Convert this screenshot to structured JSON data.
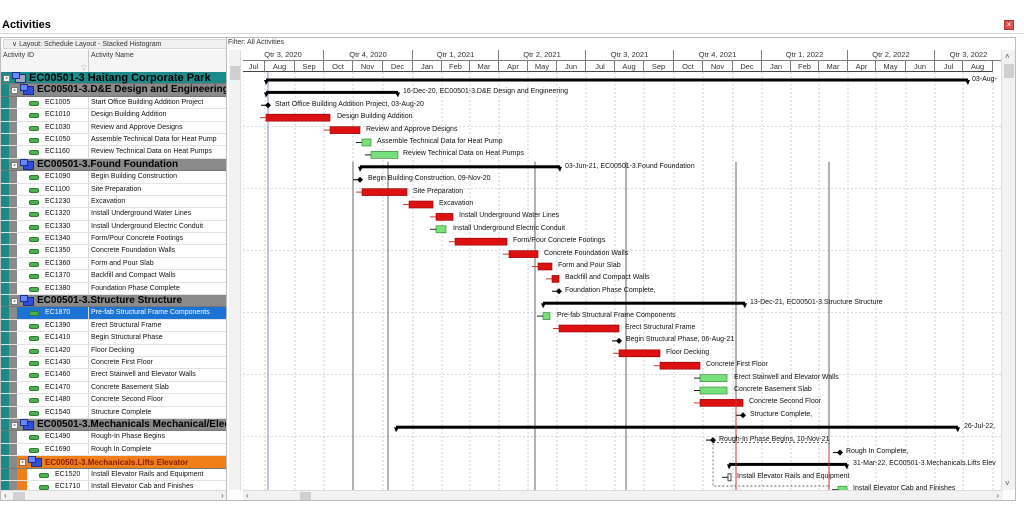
{
  "window": {
    "title": "Activities",
    "close_icon": "close-icon"
  },
  "left_pane": {
    "layout_label": "∨ Layout: Schedule Layout - Stacked Histogram",
    "columns": {
      "activity_id": "Activity ID",
      "activity_name": "Activity Name"
    }
  },
  "right_pane": {
    "filter_label": "Filter: All Activities",
    "quarters": [
      "Qtr 3, 2020",
      "Qtr 4, 2020",
      "Qtr 1, 2021",
      "Qtr 2, 2021",
      "Qtr 3, 2021",
      "Qtr 4, 2021",
      "Qtr 1, 2022",
      "Qtr 2, 2022",
      "Qtr 3, 2022"
    ],
    "months": [
      "Jul",
      "Aug",
      "Sep",
      "Oct",
      "Nov",
      "Dec",
      "Jan",
      "Feb",
      "Mar",
      "Apr",
      "May",
      "Jun",
      "Jul",
      "Aug",
      "Sep",
      "Oct",
      "Nov",
      "Dec",
      "Jan",
      "Feb",
      "Mar",
      "Apr",
      "May",
      "Jun",
      "Jul",
      "Aug"
    ]
  },
  "rows": [
    {
      "type": "wbs",
      "level": 0,
      "title": "EC00501-3  Haitang Corporate Park",
      "color": "#1a8a8a"
    },
    {
      "type": "wbs",
      "level": 1,
      "title": "EC00501-3.D&E  Design and Engineering",
      "color": "#8a8a8a"
    },
    {
      "type": "act",
      "id": "EC1005",
      "name": "Start Office Building Addition Project"
    },
    {
      "type": "act",
      "id": "EC1010",
      "name": "Design Building Addition"
    },
    {
      "type": "act",
      "id": "EC1030",
      "name": "Review and Approve Designs"
    },
    {
      "type": "act",
      "id": "EC1050",
      "name": "Assemble Technical Data for Heat Pump"
    },
    {
      "type": "act",
      "id": "EC1160",
      "name": "Review Technical Data on Heat Pumps"
    },
    {
      "type": "wbs",
      "level": 1,
      "title": "EC00501-3.Found  Foundation",
      "color": "#8a8a8a"
    },
    {
      "type": "act",
      "id": "EC1090",
      "name": "Begin Building Construction"
    },
    {
      "type": "act",
      "id": "EC1100",
      "name": "Site Preparation"
    },
    {
      "type": "act",
      "id": "EC1230",
      "name": "Excavation"
    },
    {
      "type": "act",
      "id": "EC1320",
      "name": "Install Underground Water Lines"
    },
    {
      "type": "act",
      "id": "EC1330",
      "name": "Install Underground Electric Conduit"
    },
    {
      "type": "act",
      "id": "EC1340",
      "name": "Form/Pour Concrete Footings"
    },
    {
      "type": "act",
      "id": "EC1350",
      "name": "Concrete Foundation Walls"
    },
    {
      "type": "act",
      "id": "EC1360",
      "name": "Form and Pour Slab"
    },
    {
      "type": "act",
      "id": "EC1370",
      "name": "Backfill and Compact Walls"
    },
    {
      "type": "act",
      "id": "EC1380",
      "name": "Foundation Phase Complete"
    },
    {
      "type": "wbs",
      "level": 1,
      "title": "EC00501-3.Structure  Structure",
      "color": "#8a8a8a"
    },
    {
      "type": "act",
      "id": "EC1870",
      "name": "Pre-fab Structural Frame Components",
      "selected": true
    },
    {
      "type": "act",
      "id": "EC1390",
      "name": "Erect Structural Frame"
    },
    {
      "type": "act",
      "id": "EC1410",
      "name": "Begin Structural Phase"
    },
    {
      "type": "act",
      "id": "EC1420",
      "name": "Floor Decking"
    },
    {
      "type": "act",
      "id": "EC1430",
      "name": "Concrete First Floor"
    },
    {
      "type": "act",
      "id": "EC1460",
      "name": "Erect Stairwell and Elevator Walls"
    },
    {
      "type": "act",
      "id": "EC1470",
      "name": "Concrete Basement Slab"
    },
    {
      "type": "act",
      "id": "EC1480",
      "name": "Concrete Second Floor"
    },
    {
      "type": "act",
      "id": "EC1540",
      "name": "Structure Complete"
    },
    {
      "type": "wbs",
      "level": 1,
      "title": "EC00501-3.Mechanicals  Mechanical/Elec",
      "color": "#8a8a8a"
    },
    {
      "type": "act",
      "id": "EC1490",
      "name": "Rough-In Phase Begins"
    },
    {
      "type": "act",
      "id": "EC1690",
      "name": "Rough In Complete"
    },
    {
      "type": "wbs",
      "level": 2,
      "title": "EC00501-3.Mechanicals.Lifts  Elevator",
      "color": "#f07f1a"
    },
    {
      "type": "act",
      "id": "EC1520",
      "name": "Install Elevator Rails and Equipment",
      "indent": 1
    },
    {
      "type": "act",
      "id": "EC1710",
      "name": "Install Elevator Cab and Finishes",
      "indent": 1
    }
  ],
  "gantt": {
    "colors": {
      "critical": "#dd1111",
      "noncritical": "#77e07a",
      "summary": "#000000",
      "link": "#cc3333"
    },
    "labels": {
      "r0": "03-Aug-",
      "r1": "16-Dec-20, EC00501-3.D&E  Design and Engineering",
      "r2": "Start Office Building Addition Project, 03-Aug-20",
      "r3": "Design Building Addition",
      "r4": "Review and Approve Designs",
      "r5": "Assemble Technical Data for Heat Pump",
      "r6": "Review Technical Data on Heat Pumps",
      "r7": "03-Jun-21, EC00501-3.Found  Foundation",
      "r8": "Begin Building Construction, 09-Nov-20",
      "r9": "Site Preparation",
      "r10": "Excavation",
      "r11": "Install Underground Water Lines",
      "r12": "Install Underground Electric Conduit",
      "r13": "Form/Pour Concrete Footings",
      "r14": "Concrete Foundation Walls",
      "r15": "Form and Pour Slab",
      "r16": "Backfill and Compact Walls",
      "r17": "Foundation Phase Complete,",
      "r18": "13-Dec-21, EC00501-3.Structure  Structure",
      "r19": "Pre-fab Structural Frame Components",
      "r20": "Erect Structural Frame",
      "r21": "Begin Structural Phase, 06-Aug-21",
      "r22": "Floor Decking",
      "r23": "Concrete First Floor",
      "r24": "Erect Stairwell and Elevator Walls",
      "r25": "Concrete Basement Slab",
      "r26": "Concrete Second Floor",
      "r27": "Structure Complete,",
      "r28": "26-Jul-22,",
      "r29": "Rough-In Phase Begins, 10-Nov-21",
      "r30": "Rough In Complete,",
      "r31": "31-Mar-22, EC00501-3.Mechanicals.Lifts  Elev",
      "r32": "Install Elevator Rails and Equipment",
      "r33": "Install Elevator Cab and Finishes"
    }
  }
}
